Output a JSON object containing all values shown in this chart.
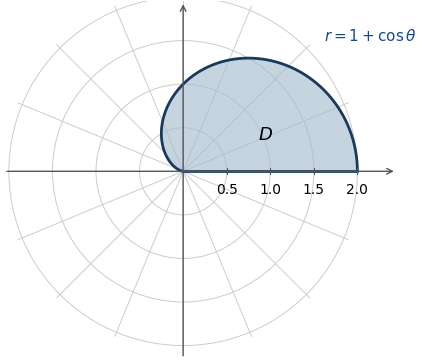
{
  "cardioid_equation": "$r = 1 + \\cos\\theta$",
  "region_label": "D",
  "fill_color": "#a8bdd0",
  "fill_alpha": 0.65,
  "edge_color": "#1a3a5c",
  "edge_linewidth": 2.0,
  "polar_grid_color": "#cccccc",
  "polar_grid_linewidth": 0.7,
  "axis_color": "#555555",
  "axis_linewidth": 1.0,
  "equation_color": "#1a4a8a",
  "equation_fontsize": 11,
  "label_fontsize": 13,
  "tick_fontsize": 10,
  "x_ticks": [
    0.5,
    1.0,
    1.5,
    2.0
  ],
  "polar_circles": [
    0.5,
    1.0,
    1.5,
    2.0
  ],
  "num_radial_lines": 8,
  "xlim": [
    -2.05,
    2.45
  ],
  "ylim": [
    -2.15,
    1.95
  ]
}
